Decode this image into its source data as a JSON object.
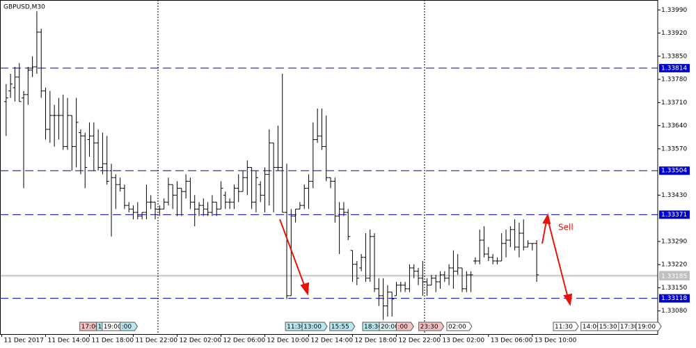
{
  "chart_data": {
    "type": "ohlc",
    "title": "GBPUSD,M30",
    "color": "#000000",
    "ylim": [
      1.3301,
      1.3402
    ],
    "xlim": [
      -1.4,
      148.6
    ],
    "yticks": [
      {
        "value": 1.3399,
        "label": "1.33990"
      },
      {
        "value": 1.3392,
        "label": "1.33920"
      },
      {
        "value": 1.3385,
        "label": "1.33850"
      },
      {
        "value": 1.3378,
        "label": "1.33780"
      },
      {
        "value": 1.3371,
        "label": "1.33710"
      },
      {
        "value": 1.3364,
        "label": "1.33640"
      },
      {
        "value": 1.3357,
        "label": "1.33570"
      },
      {
        "value": 1.3343,
        "label": "1.33430"
      },
      {
        "value": 1.3329,
        "label": "1.33290"
      },
      {
        "value": 1.3322,
        "label": "1.33220"
      },
      {
        "value": 1.3315,
        "label": "1.33150"
      },
      {
        "value": 1.3308,
        "label": "1.33080"
      }
    ],
    "xticks": [
      {
        "value": -1,
        "label": "11 Dec 2017"
      },
      {
        "value": 9,
        "label": "11 Dec 14:00"
      },
      {
        "value": 19,
        "label": "11 Dec 18:00"
      },
      {
        "value": 29,
        "label": "11 Dec 22:00"
      },
      {
        "value": 39,
        "label": "12 Dec 02:00"
      },
      {
        "value": 49,
        "label": "12 Dec 06:00"
      },
      {
        "value": 59,
        "label": "12 Dec 10:00"
      },
      {
        "value": 69,
        "label": "12 Dec 14:00"
      },
      {
        "value": 79,
        "label": "12 Dec 18:00"
      },
      {
        "value": 89,
        "label": "12 Dec 22:00"
      },
      {
        "value": 99,
        "label": "13 Dec 02:00"
      },
      {
        "value": 110,
        "label": "13 Dec 06:00"
      },
      {
        "value": 120,
        "label": "13 Dec 10:00"
      }
    ],
    "hlines": [
      {
        "value": 1.33814,
        "color": "#0000cc"
      },
      {
        "value": 1.33504,
        "color": "#0000cc"
      },
      {
        "value": 1.33371,
        "color": "#0000cc"
      },
      {
        "value": 1.33118,
        "color": "#0000cc"
      }
    ],
    "price_lines": [
      {
        "value": 1.33188,
        "color": "#c0c0c0"
      },
      {
        "value": 1.33185,
        "color": "#c0c0c0"
      }
    ],
    "events": [
      {
        "x": 16.8,
        "label": "17:00",
        "color": "#f4c2c2"
      },
      {
        "x": 20.6,
        "label": "1",
        "color": "#b9e8ef"
      },
      {
        "x": 21.9,
        "label": "19:00",
        "color": "#ffffff"
      },
      {
        "x": 26,
        "label": ":00",
        "color": "#b9e8ef"
      },
      {
        "x": 63.7,
        "label": "11:30",
        "color": "#b9e8ef"
      },
      {
        "x": 67.5,
        "label": "13:00",
        "color": "#b9e8ef"
      },
      {
        "x": 73.8,
        "label": "15:55",
        "color": "#b9e8ef"
      },
      {
        "x": 81.3,
        "label": "18:30",
        "color": "#b9e8ef"
      },
      {
        "x": 85.1,
        "label": "20:00",
        "color": "#dff4f7"
      },
      {
        "x": 89,
        "label": ":00",
        "color": "#f4c2c2"
      },
      {
        "x": 94.1,
        "label": "23:30",
        "color": "#f4c2c2"
      },
      {
        "x": 100.5,
        "label": "02:00",
        "color": "#ffffff"
      },
      {
        "x": 124.8,
        "label": "11:30",
        "color": "#ffffff"
      },
      {
        "x": 131.1,
        "label": "14:00",
        "color": "#ffffff"
      },
      {
        "x": 134.9,
        "label": "15:30",
        "color": "#ffffff"
      },
      {
        "x": 139.7,
        "label": "17:30",
        "color": "#ffffff"
      },
      {
        "x": 143.7,
        "label": "19:00",
        "color": "#ffffff"
      }
    ],
    "annotation": "Sell",
    "ohlc": [
      [
        1.33713,
        1.33766,
        1.33609,
        1.33724
      ],
      [
        1.33745,
        1.33797,
        1.33724,
        1.33766
      ],
      [
        1.33755,
        1.33818,
        1.33713,
        1.33787
      ],
      [
        1.33787,
        1.33829,
        1.33713,
        1.33713
      ],
      [
        1.33724,
        1.33745,
        1.33451,
        1.33734
      ],
      [
        1.33734,
        1.33818,
        1.33703,
        1.33808
      ],
      [
        1.33808,
        1.3385,
        1.33787,
        1.33818
      ],
      [
        1.33818,
        1.33986,
        1.33797,
        1.33923
      ],
      [
        1.33923,
        1.33933,
        1.33724,
        1.33745
      ],
      [
        1.33745,
        1.33755,
        1.33598,
        1.33629
      ],
      [
        1.33629,
        1.33745,
        1.33588,
        1.33671
      ],
      [
        1.33671,
        1.33703,
        1.33577,
        1.33671
      ],
      [
        1.33671,
        1.33724,
        1.33598,
        1.33671
      ],
      [
        1.33671,
        1.33734,
        1.33567,
        1.33577
      ],
      [
        1.33577,
        1.33724,
        1.33567,
        1.33671
      ],
      [
        1.33671,
        1.33671,
        1.33504,
        1.33577
      ],
      [
        1.33577,
        1.33724,
        1.33514,
        1.3365
      ],
      [
        1.33619,
        1.33629,
        1.33493,
        1.33609
      ],
      [
        1.33609,
        1.33619,
        1.33451,
        1.33514
      ],
      [
        1.33598,
        1.3365,
        1.33546,
        1.33609
      ],
      [
        1.33609,
        1.3365,
        1.33504,
        1.33588
      ],
      [
        1.33588,
        1.33629,
        1.33504,
        1.33514
      ],
      [
        1.33514,
        1.33619,
        1.33493,
        1.33525
      ],
      [
        1.33525,
        1.33609,
        1.33462,
        1.33472
      ],
      [
        1.33504,
        1.33525,
        1.33305,
        1.33483
      ],
      [
        1.33483,
        1.33493,
        1.33388,
        1.33462
      ],
      [
        1.33462,
        1.33483,
        1.33441,
        1.33451
      ],
      [
        1.33451,
        1.33462,
        1.33388,
        1.33399
      ],
      [
        1.33399,
        1.33409,
        1.33378,
        1.33388
      ],
      [
        1.33388,
        1.33399,
        1.33357,
        1.33378
      ],
      [
        1.33378,
        1.33409,
        1.33357,
        1.33367
      ],
      [
        1.33367,
        1.33378,
        1.33357,
        1.33378
      ],
      [
        1.33378,
        1.33462,
        1.33357,
        1.33409
      ],
      [
        1.33409,
        1.3343,
        1.33388,
        1.33409
      ],
      [
        1.33409,
        1.33409,
        1.33357,
        1.33388
      ],
      [
        1.33388,
        1.33399,
        1.33367,
        1.33388
      ],
      [
        1.33388,
        1.3342,
        1.33388,
        1.33409
      ],
      [
        1.33409,
        1.33483,
        1.33399,
        1.33462
      ],
      [
        1.33462,
        1.33462,
        1.33388,
        1.3343
      ],
      [
        1.3343,
        1.33472,
        1.33367,
        1.33451
      ],
      [
        1.33451,
        1.33451,
        1.33367,
        1.33441
      ],
      [
        1.33441,
        1.33493,
        1.3342,
        1.33472
      ],
      [
        1.33472,
        1.33483,
        1.33388,
        1.33409
      ],
      [
        1.33409,
        1.3343,
        1.33336,
        1.33388
      ],
      [
        1.33388,
        1.33409,
        1.33367,
        1.33399
      ],
      [
        1.33399,
        1.3342,
        1.33367,
        1.33388
      ],
      [
        1.33388,
        1.33409,
        1.33367,
        1.33378
      ],
      [
        1.33378,
        1.3343,
        1.33367,
        1.33409
      ],
      [
        1.33409,
        1.33409,
        1.33367,
        1.33388
      ],
      [
        1.33388,
        1.33472,
        1.33388,
        1.33451
      ],
      [
        1.3343,
        1.33441,
        1.33388,
        1.33409
      ],
      [
        1.33409,
        1.3342,
        1.33388,
        1.33409
      ],
      [
        1.33409,
        1.33462,
        1.33388,
        1.33451
      ],
      [
        1.33451,
        1.33493,
        1.33409,
        1.33441
      ],
      [
        1.33441,
        1.33504,
        1.33441,
        1.33483
      ],
      [
        1.33483,
        1.33535,
        1.3343,
        1.33514
      ],
      [
        1.33514,
        1.33514,
        1.33388,
        1.33409
      ],
      [
        1.33409,
        1.33504,
        1.33378,
        1.33483
      ],
      [
        1.33462,
        1.33472,
        1.33409,
        1.3343
      ],
      [
        1.3343,
        1.33514,
        1.33378,
        1.33493
      ],
      [
        1.33493,
        1.33629,
        1.33399,
        1.33588
      ],
      [
        1.33588,
        1.33588,
        1.33378,
        1.33514
      ],
      [
        1.33514,
        1.3364,
        1.33504,
        1.33514
      ],
      [
        1.33514,
        1.33797,
        1.33378,
        1.33378
      ],
      [
        1.33378,
        1.33525,
        1.33116,
        1.33126
      ],
      [
        1.33126,
        1.33388,
        1.33126,
        1.33367
      ],
      [
        1.33367,
        1.33388,
        1.33347,
        1.33388
      ],
      [
        1.33388,
        1.33409,
        1.33388,
        1.33399
      ],
      [
        1.33399,
        1.33462,
        1.33388,
        1.33451
      ],
      [
        1.33451,
        1.33493,
        1.33388,
        1.33472
      ],
      [
        1.33472,
        1.3365,
        1.33451,
        1.33598
      ],
      [
        1.33598,
        1.33692,
        1.33588,
        1.33609
      ],
      [
        1.33609,
        1.33692,
        1.33567,
        1.33577
      ],
      [
        1.33577,
        1.33671,
        1.33472,
        1.33483
      ],
      [
        1.33483,
        1.33483,
        1.33451,
        1.33472
      ],
      [
        1.33472,
        1.33483,
        1.33347,
        1.33367
      ],
      [
        1.33367,
        1.33409,
        1.33252,
        1.33388
      ],
      [
        1.33388,
        1.33409,
        1.33367,
        1.33378
      ],
      [
        1.33378,
        1.33388,
        1.33294,
        1.33305
      ],
      [
        1.33263,
        1.33263,
        1.33168,
        1.33221
      ],
      [
        1.33221,
        1.33231,
        1.33158,
        1.33179
      ],
      [
        1.3321,
        1.33252,
        1.332,
        1.33242
      ],
      [
        1.33242,
        1.33315,
        1.33168,
        1.33179
      ],
      [
        1.33179,
        1.33326,
        1.33168,
        1.33305
      ],
      [
        1.33305,
        1.33315,
        1.33137,
        1.33147
      ],
      [
        1.33147,
        1.33179,
        1.33095,
        1.33126
      ],
      [
        1.33126,
        1.33179,
        1.33053,
        1.33095
      ],
      [
        1.33095,
        1.33158,
        1.33063,
        1.33137
      ],
      [
        1.33137,
        1.33137,
        1.33063,
        1.33116
      ],
      [
        1.33126,
        1.33168,
        1.33126,
        1.33158
      ],
      [
        1.33158,
        1.33168,
        1.33137,
        1.33158
      ],
      [
        1.33158,
        1.33168,
        1.33137,
        1.33147
      ],
      [
        1.33147,
        1.33221,
        1.33137,
        1.3321
      ],
      [
        1.3321,
        1.33221,
        1.33179,
        1.332
      ],
      [
        1.332,
        1.3321,
        1.33158,
        1.33179
      ],
      [
        1.33179,
        1.33231,
        1.33126,
        1.33168
      ],
      [
        1.33168,
        1.33179,
        1.33126,
        1.33158
      ],
      [
        1.33158,
        1.33189,
        1.33158,
        1.33179
      ],
      [
        1.33179,
        1.33189,
        1.33137,
        1.33168
      ],
      [
        1.33168,
        1.332,
        1.33147,
        1.33189
      ],
      [
        1.33189,
        1.332,
        1.33168,
        1.33179
      ],
      [
        1.33179,
        1.33221,
        1.33158,
        1.3321
      ],
      [
        1.3321,
        1.33263,
        1.33147,
        1.332
      ],
      [
        1.332,
        1.33252,
        1.33189,
        1.3321
      ],
      [
        1.3321,
        1.3321,
        1.33137,
        1.33147
      ],
      [
        1.33147,
        1.332,
        1.33137,
        1.33189
      ],
      [
        1.33189,
        1.332,
        1.33137,
        1.33189
      ],
      [
        1.33231,
        1.33242,
        1.33221,
        1.33231
      ],
      [
        1.33231,
        1.33326,
        1.33221,
        1.33294
      ],
      [
        1.33294,
        1.33336,
        1.33242,
        1.33252
      ],
      [
        1.33252,
        1.33273,
        1.33231,
        1.33242
      ],
      [
        1.33242,
        1.33252,
        1.33221,
        1.33231
      ],
      [
        1.33231,
        1.33242,
        1.33221,
        1.33231
      ],
      [
        1.33231,
        1.33315,
        1.33231,
        1.33284
      ],
      [
        1.33284,
        1.33326,
        1.33242,
        1.33294
      ],
      [
        1.33294,
        1.33336,
        1.33273,
        1.33326
      ],
      [
        1.33326,
        1.33357,
        1.33263,
        1.33273
      ],
      [
        1.33273,
        1.33347,
        1.33242,
        1.33315
      ],
      [
        1.33315,
        1.33357,
        1.33263,
        1.33273
      ],
      [
        1.33273,
        1.33294,
        1.33273,
        1.33284
      ],
      [
        1.33284,
        1.33284,
        1.33263,
        1.33284
      ],
      [
        1.33284,
        1.33294,
        1.33168,
        1.33189
      ]
    ]
  }
}
